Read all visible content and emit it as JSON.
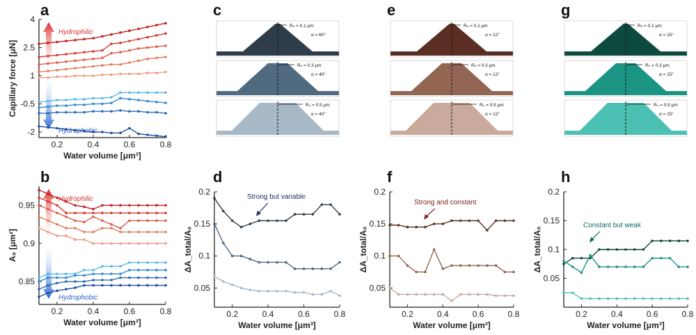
{
  "panel_letters": [
    "a",
    "b",
    "c",
    "d",
    "e",
    "f",
    "g",
    "h"
  ],
  "colors": {
    "red_series": [
      "#c21e1e",
      "#d63a30",
      "#de5a4a",
      "#e47a5a",
      "#ec9a80"
    ],
    "blue_series": [
      "#5ab8e8",
      "#2f88d0",
      "#2a6ab8",
      "#1e4ea0"
    ],
    "slate": [
      "#2f3d4a",
      "#506a80",
      "#a7b8c6"
    ],
    "brown": [
      "#5a2e22",
      "#936654",
      "#c9aa9c"
    ],
    "teal": [
      "#0c4a3e",
      "#1b9484",
      "#4cc0b2"
    ],
    "hydrophilic": "#d63030",
    "hydrophobic": "#2a5cc0"
  },
  "labels": {
    "hydrophilic": "Hydrophilic",
    "hydrophobic": "Hydrophobic",
    "ann_d": "Strong but variable",
    "ann_f": "Strong and constant",
    "ann_h": "Constant but weak"
  },
  "shapes": {
    "c": [
      {
        "r_label": "Rₙ = 0.1 μm",
        "angle_label": "α = 60°"
      },
      {
        "r_label": "Rₙ = 0.3 μm",
        "angle_label": "α = 40°"
      },
      {
        "r_label": "Rₙ = 0.5 μm",
        "angle_label": "α = 40°"
      }
    ],
    "e": [
      {
        "r_label": "Rₙ = 0.1 μm",
        "angle_label": "α = 12°"
      },
      {
        "r_label": "Rₙ = 0.3 μm",
        "angle_label": "α = 12°"
      },
      {
        "r_label": "Rₙ = 0.5 μm",
        "angle_label": "α = 12°"
      }
    ],
    "g": [
      {
        "r_label": "Rₙ = 0.1 μm",
        "angle_label": "α = 15°"
      },
      {
        "r_label": "Rₙ = 0.3 μm",
        "angle_label": "α = 15°"
      },
      {
        "r_label": "Rₙ = 0.5 μm",
        "angle_label": "α = 15°"
      }
    ]
  },
  "chart_data": [
    {
      "id": "a",
      "type": "line",
      "xlabel": "Water volume [μm³]",
      "ylabel": "Capillary force [μN]",
      "xlim": [
        0.1,
        0.8
      ],
      "ylim": [
        -2.3,
        4.0
      ],
      "xticks": [
        0.2,
        0.4,
        0.6,
        0.8
      ],
      "xtick_labels": [
        "0.2",
        "0.4",
        "0.6",
        "0.8"
      ],
      "yticks": [
        4,
        2.5,
        1,
        -0.5,
        -2
      ],
      "ytick_labels": [
        "4",
        "2.5",
        "1",
        "-0.5",
        "-2"
      ],
      "x": [
        0.1,
        0.15,
        0.2,
        0.25,
        0.3,
        0.35,
        0.4,
        0.45,
        0.5,
        0.55,
        0.6,
        0.65,
        0.7,
        0.75,
        0.8
      ],
      "series": [
        {
          "name": "red1",
          "color": "#c21e1e",
          "values": [
            2.7,
            2.75,
            2.8,
            2.85,
            2.9,
            2.95,
            3.0,
            3.1,
            3.2,
            3.3,
            3.4,
            3.5,
            3.6,
            3.7,
            3.8
          ]
        },
        {
          "name": "red2",
          "color": "#d63a30",
          "values": [
            2.0,
            2.05,
            2.1,
            2.15,
            2.2,
            2.25,
            2.3,
            2.35,
            2.7,
            2.75,
            2.85,
            2.95,
            3.05,
            3.15,
            3.25
          ]
        },
        {
          "name": "red3",
          "color": "#de5a4a",
          "values": [
            1.6,
            1.65,
            1.7,
            1.75,
            1.8,
            1.85,
            1.9,
            1.95,
            2.2,
            2.25,
            2.35,
            2.45,
            2.5,
            2.55,
            2.6
          ]
        },
        {
          "name": "red4",
          "color": "#e47a5a",
          "values": [
            1.2,
            1.25,
            1.3,
            1.35,
            1.4,
            1.45,
            1.5,
            1.55,
            1.6,
            1.6,
            1.7,
            1.8,
            1.9,
            1.95,
            2.0
          ]
        },
        {
          "name": "red5",
          "color": "#ec9a80",
          "values": [
            0.9,
            0.9,
            0.95,
            0.95,
            1.0,
            1.0,
            1.0,
            1.05,
            1.05,
            1.1,
            1.1,
            1.1,
            1.15,
            1.15,
            1.2
          ]
        },
        {
          "name": "blue1",
          "color": "#5ab8e8",
          "values": [
            -0.4,
            -0.35,
            -0.3,
            -0.3,
            -0.25,
            -0.25,
            -0.2,
            -0.2,
            -0.15,
            0.1,
            0.1,
            0.1,
            0.1,
            0.1,
            0.1
          ]
        },
        {
          "name": "blue2",
          "color": "#2f88d0",
          "values": [
            -0.7,
            -0.65,
            -0.6,
            -0.6,
            -0.55,
            -0.55,
            -0.5,
            -0.5,
            -0.45,
            -0.2,
            -0.25,
            -0.3,
            -0.35,
            -0.4,
            -0.45
          ]
        },
        {
          "name": "blue3",
          "color": "#2a6ab8",
          "values": [
            -1.0,
            -1.0,
            -0.95,
            -0.95,
            -0.95,
            -0.95,
            -0.9,
            -0.9,
            -0.9,
            -0.85,
            -0.9,
            -0.9,
            -0.95,
            -0.95,
            -1.0
          ]
        },
        {
          "name": "blue4",
          "color": "#1e4ea0",
          "values": [
            -1.7,
            -1.75,
            -1.8,
            -1.85,
            -1.9,
            -1.95,
            -2.0,
            -2.0,
            -2.05,
            -2.05,
            -1.8,
            -2.1,
            -2.15,
            -2.2,
            -2.25
          ]
        }
      ]
    },
    {
      "id": "b",
      "type": "line",
      "xlabel": "Water volume [μm³]",
      "ylabel": "A₀ [μm²]",
      "xlim": [
        0.1,
        0.8
      ],
      "ylim": [
        0.82,
        0.975
      ],
      "xticks": [
        0.2,
        0.4,
        0.6,
        0.8
      ],
      "xtick_labels": [
        "0.2",
        "0.4",
        "0.6",
        "0.8"
      ],
      "yticks": [
        0.95,
        0.9,
        0.85
      ],
      "ytick_labels": [
        "0.95",
        "0.9",
        "0.85"
      ],
      "x": [
        0.1,
        0.15,
        0.2,
        0.25,
        0.3,
        0.35,
        0.4,
        0.45,
        0.5,
        0.55,
        0.6,
        0.65,
        0.7,
        0.75,
        0.8
      ],
      "series": [
        {
          "name": "red1",
          "color": "#c21e1e",
          "values": [
            0.97,
            0.965,
            0.96,
            0.955,
            0.95,
            0.948,
            0.945,
            0.95,
            0.95,
            0.95,
            0.95,
            0.95,
            0.95,
            0.95,
            0.95
          ]
        },
        {
          "name": "red2",
          "color": "#d63a30",
          "values": [
            0.96,
            0.955,
            0.95,
            0.94,
            0.94,
            0.94,
            0.94,
            0.94,
            0.94,
            0.94,
            0.94,
            0.94,
            0.94,
            0.94,
            0.94
          ]
        },
        {
          "name": "red3",
          "color": "#de5a4a",
          "values": [
            0.95,
            0.945,
            0.94,
            0.935,
            0.93,
            0.928,
            0.935,
            0.93,
            0.925,
            0.92,
            0.93,
            0.93,
            0.93,
            0.93,
            0.93
          ]
        },
        {
          "name": "red4",
          "color": "#e47a5a",
          "values": [
            0.935,
            0.93,
            0.925,
            0.92,
            0.92,
            0.915,
            0.915,
            0.92,
            0.92,
            0.915,
            0.915,
            0.915,
            0.915,
            0.915,
            0.915
          ]
        },
        {
          "name": "red5",
          "color": "#ec9a80",
          "values": [
            0.92,
            0.915,
            0.91,
            0.91,
            0.905,
            0.905,
            0.9,
            0.9,
            0.9,
            0.9,
            0.9,
            0.9,
            0.9,
            0.9,
            0.9
          ]
        },
        {
          "name": "blue1",
          "color": "#5ab8e8",
          "values": [
            0.855,
            0.86,
            0.86,
            0.86,
            0.86,
            0.865,
            0.865,
            0.87,
            0.87,
            0.87,
            0.875,
            0.875,
            0.875,
            0.875,
            0.875
          ]
        },
        {
          "name": "blue2",
          "color": "#2f88d0",
          "values": [
            0.85,
            0.855,
            0.855,
            0.855,
            0.858,
            0.858,
            0.86,
            0.86,
            0.86,
            0.86,
            0.865,
            0.865,
            0.865,
            0.865,
            0.865
          ]
        },
        {
          "name": "blue3",
          "color": "#2a6ab8",
          "values": [
            0.84,
            0.845,
            0.848,
            0.85,
            0.85,
            0.85,
            0.852,
            0.852,
            0.852,
            0.855,
            0.855,
            0.855,
            0.855,
            0.855,
            0.855
          ]
        },
        {
          "name": "blue4",
          "color": "#1e4ea0",
          "values": [
            0.83,
            0.835,
            0.838,
            0.84,
            0.842,
            0.845,
            0.845,
            0.845,
            0.845,
            0.845,
            0.845,
            0.845,
            0.845,
            0.845,
            0.845
          ]
        }
      ]
    },
    {
      "id": "d",
      "type": "line",
      "xlabel": "Water volume [μm³]",
      "ylabel": "ΔA_total/A₀",
      "xlim": [
        0.1,
        0.8
      ],
      "ylim": [
        0.02,
        0.2
      ],
      "xticks": [
        0.2,
        0.4,
        0.6,
        0.8
      ],
      "xtick_labels": [
        "0.2",
        "0.4",
        "0.6",
        "0.8"
      ],
      "yticks": [
        0.2,
        0.15,
        0.1,
        0.05
      ],
      "ytick_labels": [
        "0.2",
        "0.15",
        "0.1",
        "0.05"
      ],
      "x": [
        0.1,
        0.15,
        0.2,
        0.25,
        0.3,
        0.35,
        0.4,
        0.45,
        0.5,
        0.55,
        0.6,
        0.65,
        0.7,
        0.75,
        0.8
      ],
      "series": [
        {
          "name": "slate-dark",
          "color": "#2f3d4a",
          "values": [
            0.19,
            0.17,
            0.155,
            0.145,
            0.15,
            0.155,
            0.155,
            0.155,
            0.155,
            0.165,
            0.165,
            0.165,
            0.18,
            0.18,
            0.165
          ]
        },
        {
          "name": "slate-mid",
          "color": "#506a80",
          "values": [
            0.15,
            0.12,
            0.1,
            0.1,
            0.095,
            0.09,
            0.09,
            0.09,
            0.09,
            0.08,
            0.08,
            0.08,
            0.08,
            0.08,
            0.09
          ]
        },
        {
          "name": "slate-light",
          "color": "#a7b8c6",
          "values": [
            0.068,
            0.06,
            0.055,
            0.05,
            0.047,
            0.045,
            0.045,
            0.045,
            0.045,
            0.043,
            0.043,
            0.04,
            0.04,
            0.045,
            0.038
          ]
        }
      ]
    },
    {
      "id": "f",
      "type": "line",
      "xlabel": "Water volume [μm³]",
      "ylabel": "ΔA_total/A₀",
      "xlim": [
        0.1,
        0.8
      ],
      "ylim": [
        0.02,
        0.2
      ],
      "xticks": [
        0.2,
        0.4,
        0.6,
        0.8
      ],
      "xtick_labels": [
        "0.2",
        "0.4",
        "0.6",
        "0.8"
      ],
      "yticks": [
        0.2,
        0.15,
        0.1,
        0.05
      ],
      "ytick_labels": [
        "0.2",
        "0.15",
        "0.1",
        "0.05"
      ],
      "x": [
        0.1,
        0.15,
        0.2,
        0.25,
        0.3,
        0.35,
        0.4,
        0.45,
        0.5,
        0.55,
        0.6,
        0.65,
        0.7,
        0.75,
        0.8
      ],
      "series": [
        {
          "name": "brown-dark",
          "color": "#5a2e22",
          "values": [
            0.148,
            0.148,
            0.145,
            0.145,
            0.145,
            0.15,
            0.15,
            0.155,
            0.155,
            0.155,
            0.155,
            0.14,
            0.155,
            0.155,
            0.155
          ]
        },
        {
          "name": "brown-mid",
          "color": "#936654",
          "values": [
            0.1,
            0.1,
            0.085,
            0.075,
            0.075,
            0.11,
            0.08,
            0.085,
            0.085,
            0.085,
            0.085,
            0.085,
            0.085,
            0.075,
            0.075
          ]
        },
        {
          "name": "brown-light",
          "color": "#c9aa9c",
          "values": [
            0.05,
            0.04,
            0.04,
            0.04,
            0.04,
            0.04,
            0.04,
            0.03,
            0.04,
            0.04,
            0.04,
            0.04,
            0.038,
            0.038,
            0.038
          ]
        }
      ]
    },
    {
      "id": "h",
      "type": "line",
      "xlabel": "Water volume [μm³]",
      "ylabel": "ΔA_total/A₀",
      "xlim": [
        0.1,
        0.8
      ],
      "ylim": [
        0.0,
        0.2
      ],
      "xticks": [
        0.2,
        0.4,
        0.6,
        0.8
      ],
      "xtick_labels": [
        "0.2",
        "0.4",
        "0.6",
        "0.8"
      ],
      "yticks": [
        0.2,
        0.15,
        0.1,
        0.05
      ],
      "ytick_labels": [
        "0.2",
        "0.15",
        "0.1",
        "0.05"
      ],
      "x": [
        0.1,
        0.15,
        0.2,
        0.25,
        0.3,
        0.35,
        0.4,
        0.45,
        0.5,
        0.55,
        0.6,
        0.65,
        0.7,
        0.75,
        0.8
      ],
      "series": [
        {
          "name": "teal-dark",
          "color": "#0c4a3e",
          "values": [
            0.075,
            0.085,
            0.085,
            0.085,
            0.1,
            0.1,
            0.1,
            0.1,
            0.1,
            0.1,
            0.115,
            0.115,
            0.115,
            0.115,
            0.115
          ]
        },
        {
          "name": "teal-mid",
          "color": "#1b9484",
          "values": [
            0.08,
            0.07,
            0.06,
            0.09,
            0.07,
            0.07,
            0.07,
            0.07,
            0.07,
            0.07,
            0.085,
            0.085,
            0.085,
            0.07,
            0.07
          ]
        },
        {
          "name": "teal-light",
          "color": "#4cc0b2",
          "values": [
            0.025,
            0.025,
            0.015,
            0.015,
            0.015,
            0.015,
            0.015,
            0.015,
            0.015,
            0.015,
            0.015,
            0.015,
            0.015,
            0.015,
            0.015
          ]
        }
      ]
    }
  ]
}
